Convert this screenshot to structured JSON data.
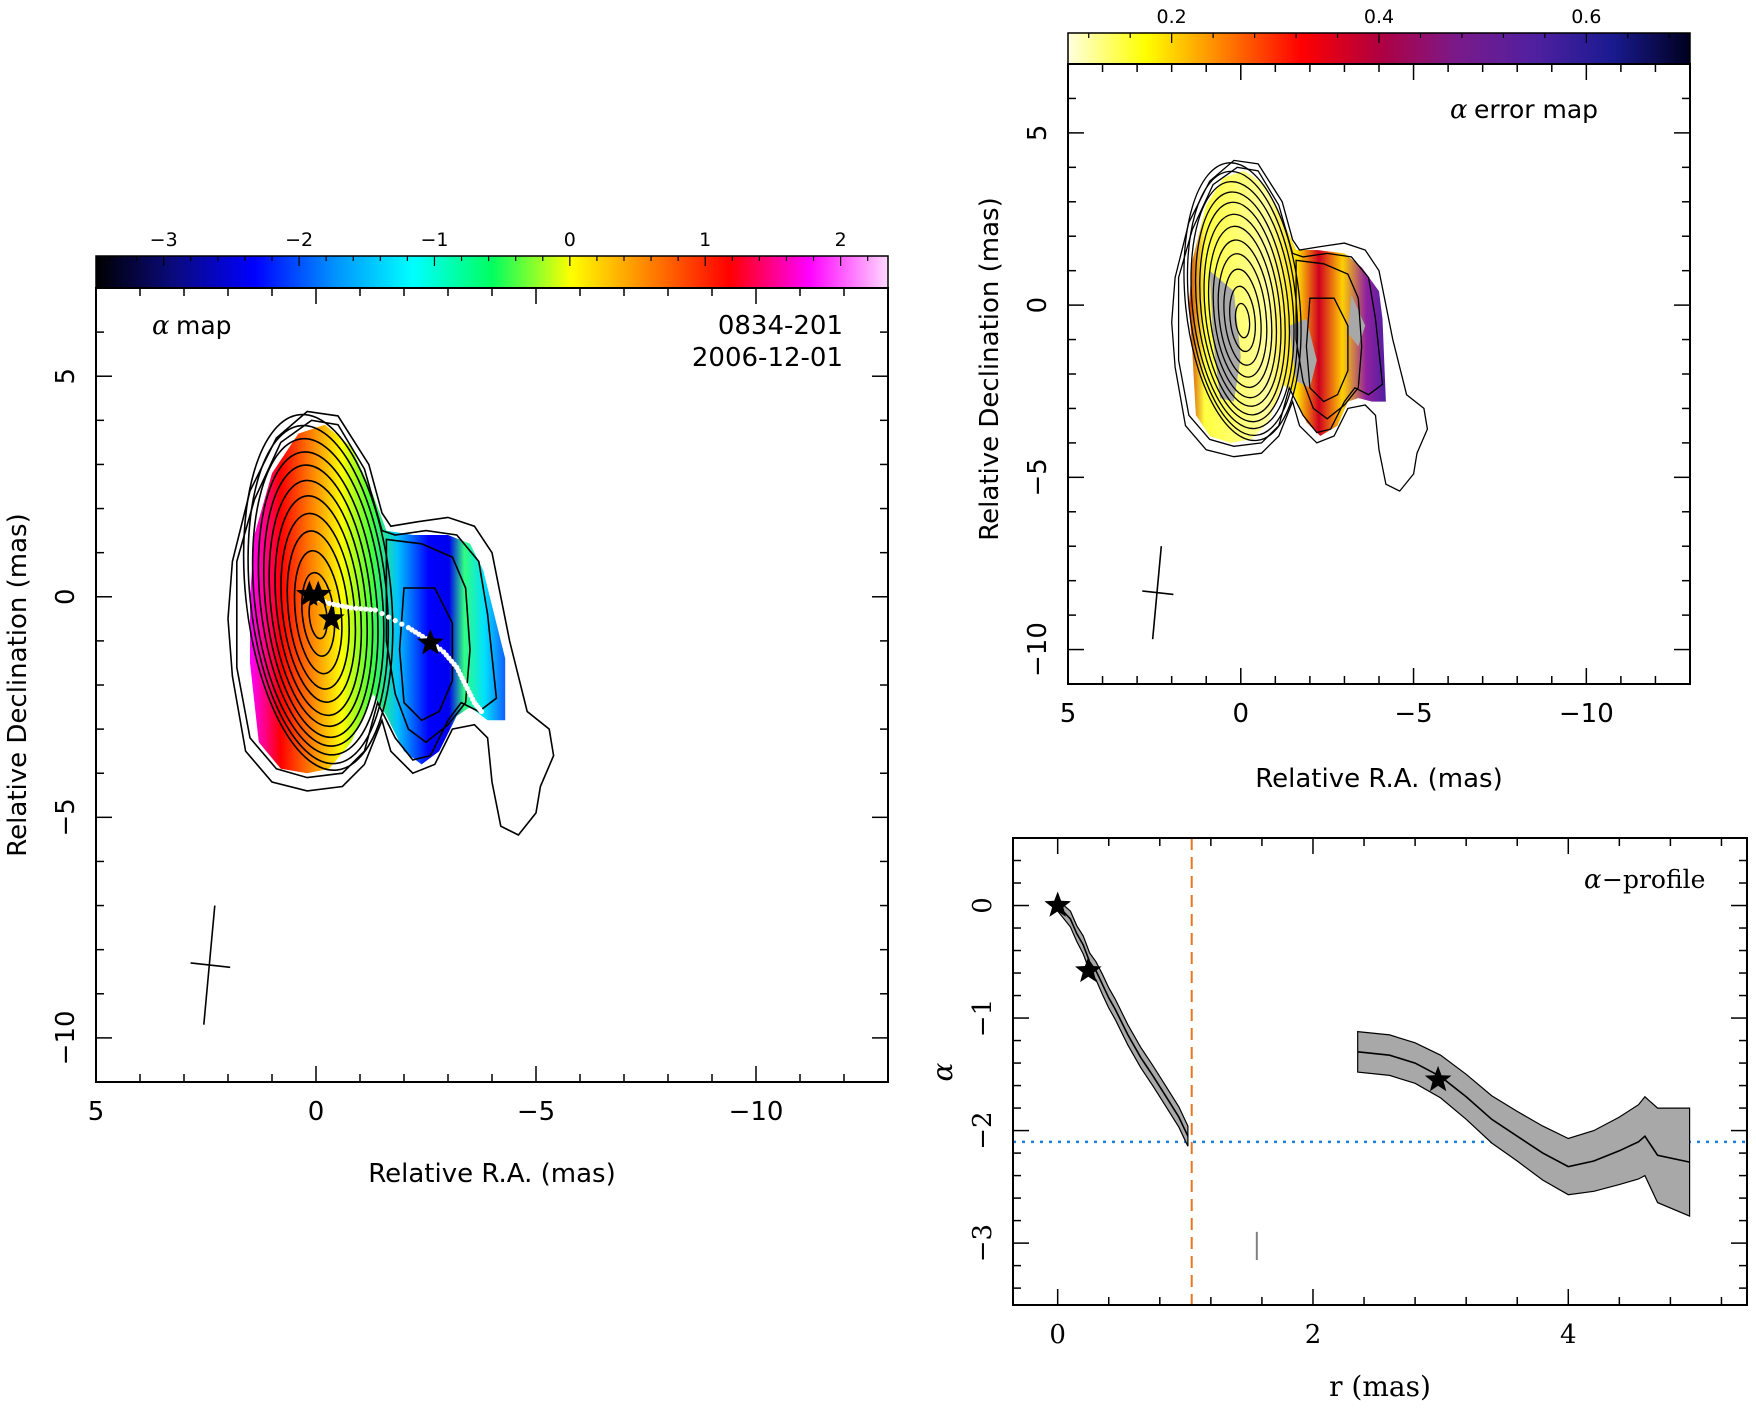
{
  "chart_data": [
    {
      "type": "heatmap",
      "map_label_symbol": "α",
      "map_label_word": "map",
      "source": "0834-201",
      "date": "2006-12-01",
      "xlabel": "Relative R.A. (mas)",
      "ylabel": "Relative Declination (mas)",
      "xlim": [
        5,
        -13
      ],
      "ylim": [
        -11,
        7
      ],
      "x_ticks": [
        5,
        0,
        -5,
        -10
      ],
      "x_tick_labels": [
        "5",
        "0",
        "−5",
        "−10"
      ],
      "y_ticks": [
        5,
        0,
        -5,
        -10
      ],
      "y_tick_labels": [
        "5",
        "0",
        "−5",
        "−10"
      ],
      "colorbar": {
        "range": [
          -3.5,
          2.35
        ],
        "ticks": [
          -3,
          -2,
          -1,
          0,
          1,
          2
        ],
        "tick_labels": [
          "−3",
          "−2",
          "−1",
          "0",
          "1",
          "2"
        ],
        "colors": [
          "#000000",
          "#0a0a80",
          "#0000ff",
          "#0090ff",
          "#00ffff",
          "#00ff60",
          "#ffff00",
          "#ff8000",
          "#ff0000",
          "#ff00ff",
          "#ffd8ff"
        ]
      },
      "stars": [
        [
          0.15,
          0.05
        ],
        [
          -0.05,
          0.05
        ],
        [
          -0.35,
          -0.5
        ],
        [
          -2.6,
          -1.05
        ]
      ],
      "ridge_points": [
        [
          0.2,
          0.05
        ],
        [
          -0.3,
          -0.15
        ],
        [
          -0.8,
          -0.25
        ],
        [
          -1.35,
          -0.3
        ],
        [
          -2.1,
          -0.7
        ],
        [
          -2.5,
          -0.95
        ],
        [
          -2.9,
          -1.25
        ],
        [
          -3.2,
          -1.6
        ],
        [
          -3.4,
          -2.0
        ],
        [
          -3.6,
          -2.4
        ],
        [
          -3.8,
          -2.65
        ]
      ],
      "beam": {
        "major_start": [
          2.3,
          -7.0
        ],
        "major_end": [
          2.55,
          -9.7
        ],
        "minor_start": [
          2.85,
          -8.3
        ],
        "minor_end": [
          1.95,
          -8.4
        ]
      }
    },
    {
      "type": "heatmap",
      "map_label_symbol": "α",
      "map_label_word": "error map",
      "xlabel": "Relative R.A. (mas)",
      "ylabel": "Relative Declination (mas)",
      "xlim": [
        5,
        -13
      ],
      "ylim": [
        -11,
        7
      ],
      "x_ticks": [
        5,
        0,
        -5,
        -10
      ],
      "x_tick_labels": [
        "5",
        "0",
        "−5",
        "−10"
      ],
      "y_ticks": [
        5,
        0,
        -5,
        -10
      ],
      "y_tick_labels": [
        "5",
        "0",
        "−5",
        "−10"
      ],
      "colorbar": {
        "range": [
          0.1,
          0.7
        ],
        "ticks": [
          0.2,
          0.4,
          0.6
        ],
        "tick_labels": [
          "0.2",
          "0.4",
          "0.6"
        ],
        "colors": [
          "#ffffe0",
          "#ffff00",
          "#ff8000",
          "#ff0000",
          "#b00040",
          "#7a1a8a",
          "#5020a0",
          "#1a1a90",
          "#000020"
        ]
      },
      "beam": {
        "major_start": [
          2.3,
          -7.0
        ],
        "major_end": [
          2.55,
          -9.7
        ],
        "minor_start": [
          2.85,
          -8.3
        ],
        "minor_end": [
          1.95,
          -8.4
        ]
      }
    },
    {
      "type": "line",
      "title_symbol": "α",
      "title_word": "−profile",
      "xlabel": "r (mas)",
      "ylabel": "α",
      "xlim": [
        -0.35,
        5.4
      ],
      "ylim": [
        -3.55,
        0.6
      ],
      "x_ticks": [
        0,
        2,
        4
      ],
      "x_tick_labels": [
        "0",
        "2",
        "4"
      ],
      "y_ticks": [
        0,
        -1,
        -2,
        -3
      ],
      "y_tick_labels": [
        "0",
        "−1",
        "−2",
        "−3"
      ],
      "series": [
        {
          "x": [
            0.0,
            0.1,
            0.15,
            0.2,
            0.25,
            0.3,
            0.35,
            0.4,
            0.45,
            0.55,
            0.65,
            0.75,
            0.85,
            0.95,
            1.02
          ],
          "y": [
            0.0,
            -0.12,
            -0.25,
            -0.35,
            -0.5,
            -0.58,
            -0.7,
            -0.82,
            -0.92,
            -1.15,
            -1.35,
            -1.52,
            -1.7,
            -1.88,
            -2.05
          ],
          "err": [
            0.05,
            0.07,
            0.07,
            0.08,
            0.08,
            0.08,
            0.09,
            0.09,
            0.09,
            0.09,
            0.09,
            0.09,
            0.09,
            0.09,
            0.09
          ]
        },
        {
          "x": [
            2.35,
            2.6,
            2.8,
            3.0,
            3.2,
            3.4,
            3.6,
            3.8,
            4.0,
            4.2,
            4.4,
            4.55,
            4.6,
            4.7,
            4.95
          ],
          "y": [
            -1.3,
            -1.33,
            -1.4,
            -1.52,
            -1.7,
            -1.9,
            -2.05,
            -2.2,
            -2.32,
            -2.27,
            -2.18,
            -2.1,
            -2.05,
            -2.22,
            -2.28
          ],
          "err": [
            0.18,
            0.18,
            0.18,
            0.19,
            0.2,
            0.21,
            0.22,
            0.24,
            0.25,
            0.27,
            0.3,
            0.33,
            0.35,
            0.42,
            0.48
          ]
        }
      ],
      "stars": [
        [
          0.0,
          0.0
        ],
        [
          0.24,
          -0.58
        ],
        [
          2.98,
          -1.55
        ]
      ],
      "vline_x": 1.05,
      "hline_y": -2.1,
      "small_marker": {
        "x": 1.56,
        "y1": -2.9,
        "y2": -3.15
      }
    }
  ]
}
